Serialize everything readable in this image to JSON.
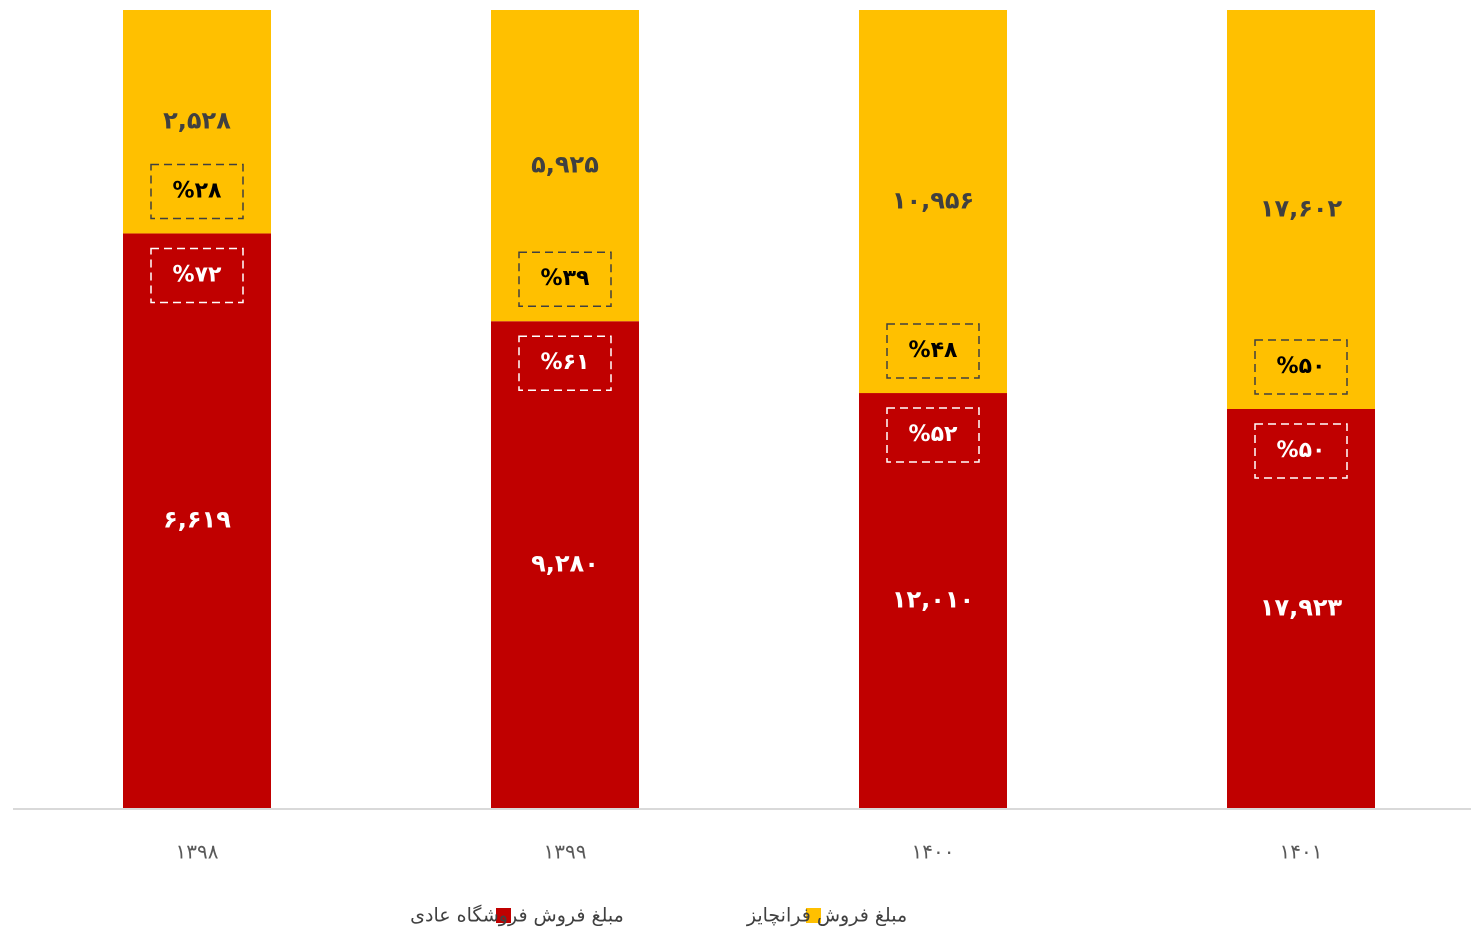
{
  "chart_data": {
    "type": "stacked_bar_percent",
    "categories": [
      "۱۳۹۸",
      "۱۳۹۹",
      "۱۴۰۰",
      "۱۴۰۱"
    ],
    "ylim": [
      0,
      100
    ],
    "series": [
      {
        "name": "مبلغ فروش فروشگاه عادی",
        "color": "#c00000",
        "values": [
          6619,
          9280,
          12010,
          17923
        ],
        "value_labels": [
          "۶,۶۱۹",
          "۹,۲۸۰",
          "۱۲,۰۱۰",
          "۱۷,۹۲۳"
        ],
        "percentages": [
          72,
          61,
          52,
          50
        ],
        "percentage_labels": [
          "%۷۲",
          "%۶۱",
          "%۵۲",
          "%۵۰"
        ]
      },
      {
        "name": "مبلغ فروش فرانچایز",
        "color": "#ffc000",
        "values": [
          2528,
          5925,
          10956,
          17602
        ],
        "value_labels": [
          "۲,۵۲۸",
          "۵,۹۲۵",
          "۱۰,۹۵۶",
          "۱۷,۶۰۲"
        ],
        "percentages": [
          28,
          39,
          48,
          50
        ],
        "percentage_labels": [
          "%۲۸",
          "%۳۹",
          "%۴۸",
          "%۵۰"
        ]
      }
    ]
  }
}
